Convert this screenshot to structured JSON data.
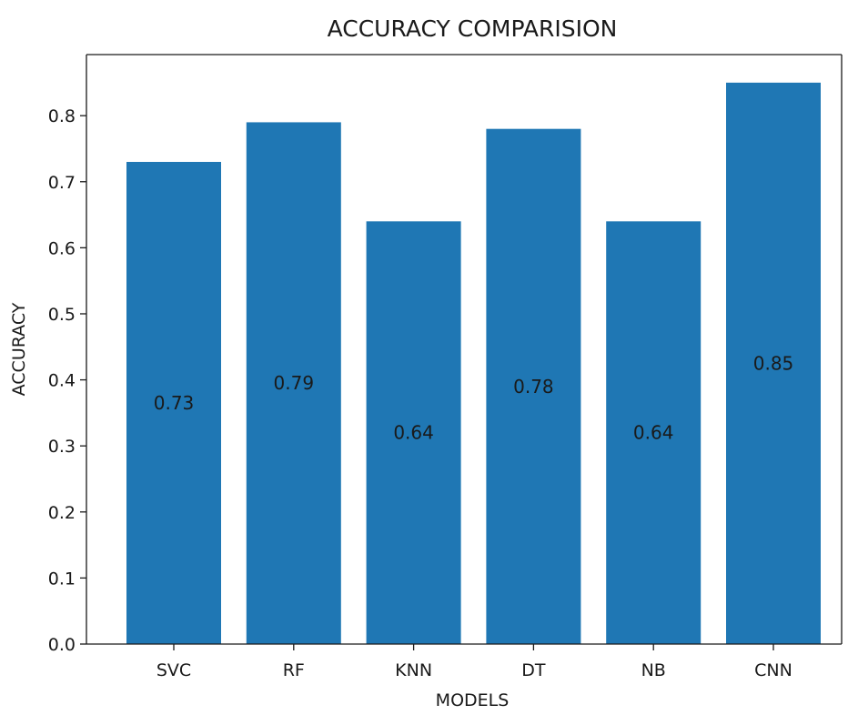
{
  "chart_data": {
    "type": "bar",
    "title": "ACCURACY COMPARISION",
    "xlabel": "MODELS",
    "ylabel": "ACCURACY",
    "categories": [
      "SVC",
      "RF",
      "KNN",
      "DT",
      "NB",
      "CNN"
    ],
    "values": [
      0.73,
      0.79,
      0.64,
      0.78,
      0.64,
      0.85
    ],
    "data_labels": [
      "0.73",
      "0.79",
      "0.64",
      "0.78",
      "0.64",
      "0.85"
    ],
    "yticks": [
      0.0,
      0.1,
      0.2,
      0.3,
      0.4,
      0.5,
      0.6,
      0.7,
      0.8
    ],
    "ytick_labels": [
      "0.0",
      "0.1",
      "0.2",
      "0.3",
      "0.4",
      "0.5",
      "0.6",
      "0.7",
      "0.8"
    ],
    "ylim": [
      0,
      0.8925
    ],
    "grid": false,
    "bar_color": "#1f77b4"
  }
}
